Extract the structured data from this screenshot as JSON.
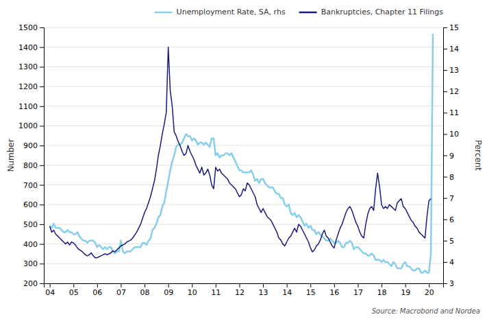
{
  "chart_data": {
    "type": "line",
    "y_label": "Number",
    "y2_label": "Percent",
    "annotations": [
      "Source: Macrobond and Nordea"
    ],
    "xlim": [
      2003.75,
      2020.6
    ],
    "xticks": [
      {
        "value": 2004,
        "label": "04"
      },
      {
        "value": 2005,
        "label": "05"
      },
      {
        "value": 2006,
        "label": "06"
      },
      {
        "value": 2007,
        "label": "07"
      },
      {
        "value": 2008,
        "label": "08"
      },
      {
        "value": 2009,
        "label": "09"
      },
      {
        "value": 2010,
        "label": "10"
      },
      {
        "value": 2011,
        "label": "11"
      },
      {
        "value": 2012,
        "label": "12"
      },
      {
        "value": 2013,
        "label": "13"
      },
      {
        "value": 2014,
        "label": "14"
      },
      {
        "value": 2015,
        "label": "15"
      },
      {
        "value": 2016,
        "label": "16"
      },
      {
        "value": 2017,
        "label": "17"
      },
      {
        "value": 2018,
        "label": "18"
      },
      {
        "value": 2019,
        "label": "19"
      },
      {
        "value": 2020,
        "label": "20"
      }
    ],
    "ylim": [
      200,
      1500
    ],
    "yticks": [
      200,
      300,
      400,
      500,
      600,
      700,
      800,
      900,
      1000,
      1100,
      1200,
      1300,
      1400,
      1500
    ],
    "y2lim": [
      3,
      15
    ],
    "y2ticks": [
      3,
      4,
      5,
      6,
      7,
      8,
      9,
      10,
      11,
      12,
      13,
      14,
      15
    ],
    "grid": true,
    "legend": "upper right",
    "series": [
      {
        "name": "Unemployment Rate, SA, rhs",
        "color": "#87CEEB",
        "axis": "y2",
        "x": [
          2004.0,
          2004.083,
          2004.167,
          2004.25,
          2004.333,
          2004.417,
          2004.5,
          2004.583,
          2004.667,
          2004.75,
          2004.833,
          2004.917,
          2005.0,
          2005.083,
          2005.167,
          2005.25,
          2005.333,
          2005.417,
          2005.5,
          2005.583,
          2005.667,
          2005.75,
          2005.833,
          2005.917,
          2006.0,
          2006.083,
          2006.167,
          2006.25,
          2006.333,
          2006.417,
          2006.5,
          2006.583,
          2006.667,
          2006.75,
          2006.833,
          2006.917,
          2007.0,
          2007.083,
          2007.167,
          2007.25,
          2007.333,
          2007.417,
          2007.5,
          2007.583,
          2007.667,
          2007.75,
          2007.833,
          2007.917,
          2008.0,
          2008.083,
          2008.167,
          2008.25,
          2008.333,
          2008.417,
          2008.5,
          2008.583,
          2008.667,
          2008.75,
          2008.833,
          2008.917,
          2009.0,
          2009.083,
          2009.167,
          2009.25,
          2009.333,
          2009.417,
          2009.5,
          2009.583,
          2009.667,
          2009.75,
          2009.833,
          2009.917,
          2010.0,
          2010.083,
          2010.167,
          2010.25,
          2010.333,
          2010.417,
          2010.5,
          2010.583,
          2010.667,
          2010.75,
          2010.833,
          2010.917,
          2011.0,
          2011.083,
          2011.167,
          2011.25,
          2011.333,
          2011.417,
          2011.5,
          2011.583,
          2011.667,
          2011.75,
          2011.833,
          2011.917,
          2012.0,
          2012.083,
          2012.167,
          2012.25,
          2012.333,
          2012.417,
          2012.5,
          2012.583,
          2012.667,
          2012.75,
          2012.833,
          2012.917,
          2013.0,
          2013.083,
          2013.167,
          2013.25,
          2013.333,
          2013.417,
          2013.5,
          2013.583,
          2013.667,
          2013.75,
          2013.833,
          2013.917,
          2014.0,
          2014.083,
          2014.167,
          2014.25,
          2014.333,
          2014.417,
          2014.5,
          2014.583,
          2014.667,
          2014.75,
          2014.833,
          2014.917,
          2015.0,
          2015.083,
          2015.167,
          2015.25,
          2015.333,
          2015.417,
          2015.5,
          2015.583,
          2015.667,
          2015.75,
          2015.833,
          2015.917,
          2016.0,
          2016.083,
          2016.167,
          2016.25,
          2016.333,
          2016.417,
          2016.5,
          2016.583,
          2016.667,
          2016.75,
          2016.833,
          2016.917,
          2017.0,
          2017.083,
          2017.167,
          2017.25,
          2017.333,
          2017.417,
          2017.5,
          2017.583,
          2017.667,
          2017.75,
          2017.833,
          2017.917,
          2018.0,
          2018.083,
          2018.167,
          2018.25,
          2018.333,
          2018.417,
          2018.5,
          2018.583,
          2018.667,
          2018.75,
          2018.833,
          2018.917,
          2019.0,
          2019.083,
          2019.167,
          2019.25,
          2019.333,
          2019.417,
          2019.5,
          2019.583,
          2019.667,
          2019.75,
          2019.833,
          2019.917,
          2020.0,
          2020.083,
          2020.167
        ],
        "values": [
          5.7,
          5.6,
          5.8,
          5.6,
          5.6,
          5.6,
          5.5,
          5.4,
          5.4,
          5.5,
          5.4,
          5.4,
          5.3,
          5.3,
          5.4,
          5.2,
          5.1,
          5.0,
          5.0,
          4.9,
          5.0,
          5.0,
          5.0,
          4.9,
          4.7,
          4.8,
          4.7,
          4.6,
          4.7,
          4.6,
          4.7,
          4.7,
          4.5,
          4.4,
          4.5,
          4.5,
          5.0,
          4.5,
          4.4,
          4.5,
          4.5,
          4.5,
          4.6,
          4.7,
          4.7,
          4.7,
          4.7,
          4.9,
          4.9,
          4.8,
          5.0,
          5.1,
          5.5,
          5.6,
          5.8,
          6.1,
          6.2,
          6.6,
          6.8,
          7.3,
          7.8,
          8.3,
          8.7,
          9.0,
          9.4,
          9.5,
          9.5,
          9.6,
          9.8,
          10.0,
          9.9,
          9.9,
          9.7,
          9.8,
          9.7,
          9.5,
          9.6,
          9.6,
          9.5,
          9.6,
          9.5,
          9.4,
          9.8,
          9.8,
          9.0,
          9.1,
          8.9,
          9.0,
          9.0,
          9.1,
          9.1,
          9.0,
          9.1,
          8.9,
          8.7,
          8.5,
          8.3,
          8.3,
          8.2,
          8.2,
          8.2,
          8.2,
          8.3,
          8.1,
          7.8,
          7.9,
          7.7,
          7.9,
          7.9,
          7.7,
          7.6,
          7.5,
          7.5,
          7.5,
          7.3,
          7.2,
          7.2,
          7.0,
          7.0,
          6.7,
          6.6,
          6.7,
          6.3,
          6.2,
          6.3,
          6.1,
          6.2,
          6.1,
          5.9,
          5.7,
          5.8,
          5.6,
          5.7,
          5.5,
          5.5,
          5.3,
          5.4,
          5.3,
          5.2,
          5.1,
          5.0,
          5.0,
          5.1,
          5.0,
          4.9,
          4.9,
          5.0,
          4.9,
          4.7,
          4.7,
          4.9,
          4.9,
          5.0,
          4.9,
          4.6,
          4.7,
          4.7,
          4.6,
          4.5,
          4.4,
          4.4,
          4.3,
          4.3,
          4.4,
          4.3,
          4.1,
          4.1,
          4.1,
          4.0,
          4.1,
          4.0,
          4.0,
          3.9,
          3.8,
          4.0,
          3.9,
          3.7,
          3.7,
          3.7,
          3.9,
          4.0,
          3.8,
          3.8,
          3.7,
          3.6,
          3.6,
          3.7,
          3.7,
          3.5,
          3.5,
          3.6,
          3.5,
          3.5,
          4.4,
          14.7
        ]
      },
      {
        "name": "Bankruptcies, Chapter 11 Filings",
        "color": "#1a1a7e",
        "x": [
          2004.0,
          2004.083,
          2004.167,
          2004.25,
          2004.333,
          2004.417,
          2004.5,
          2004.583,
          2004.667,
          2004.75,
          2004.833,
          2004.917,
          2005.0,
          2005.083,
          2005.167,
          2005.25,
          2005.333,
          2005.417,
          2005.5,
          2005.583,
          2005.667,
          2005.75,
          2005.833,
          2005.917,
          2006.0,
          2006.083,
          2006.167,
          2006.25,
          2006.333,
          2006.417,
          2006.5,
          2006.583,
          2006.667,
          2006.75,
          2006.833,
          2006.917,
          2007.0,
          2007.083,
          2007.167,
          2007.25,
          2007.333,
          2007.417,
          2007.5,
          2007.583,
          2007.667,
          2007.75,
          2007.833,
          2007.917,
          2008.0,
          2008.083,
          2008.167,
          2008.25,
          2008.333,
          2008.417,
          2008.5,
          2008.583,
          2008.667,
          2008.75,
          2008.833,
          2008.917,
          2009.0,
          2009.083,
          2009.167,
          2009.25,
          2009.333,
          2009.417,
          2009.5,
          2009.583,
          2009.667,
          2009.75,
          2009.833,
          2009.917,
          2010.0,
          2010.083,
          2010.167,
          2010.25,
          2010.333,
          2010.417,
          2010.5,
          2010.583,
          2010.667,
          2010.75,
          2010.833,
          2010.917,
          2011.0,
          2011.083,
          2011.167,
          2011.25,
          2011.333,
          2011.417,
          2011.5,
          2011.583,
          2011.667,
          2011.75,
          2011.833,
          2011.917,
          2012.0,
          2012.083,
          2012.167,
          2012.25,
          2012.333,
          2012.417,
          2012.5,
          2012.583,
          2012.667,
          2012.75,
          2012.833,
          2012.917,
          2013.0,
          2013.083,
          2013.167,
          2013.25,
          2013.333,
          2013.417,
          2013.5,
          2013.583,
          2013.667,
          2013.75,
          2013.833,
          2013.917,
          2014.0,
          2014.083,
          2014.167,
          2014.25,
          2014.333,
          2014.417,
          2014.5,
          2014.583,
          2014.667,
          2014.75,
          2014.833,
          2014.917,
          2015.0,
          2015.083,
          2015.167,
          2015.25,
          2015.333,
          2015.417,
          2015.5,
          2015.583,
          2015.667,
          2015.75,
          2015.833,
          2015.917,
          2016.0,
          2016.083,
          2016.167,
          2016.25,
          2016.333,
          2016.417,
          2016.5,
          2016.583,
          2016.667,
          2016.75,
          2016.833,
          2016.917,
          2017.0,
          2017.083,
          2017.167,
          2017.25,
          2017.333,
          2017.417,
          2017.5,
          2017.583,
          2017.667,
          2017.75,
          2017.833,
          2017.917,
          2018.0,
          2018.083,
          2018.167,
          2018.25,
          2018.333,
          2018.417,
          2018.5,
          2018.583,
          2018.667,
          2018.75,
          2018.833,
          2018.917,
          2019.0,
          2019.083,
          2019.167,
          2019.25,
          2019.333,
          2019.417,
          2019.5,
          2019.583,
          2019.667,
          2019.75,
          2019.833,
          2019.917,
          2020.0,
          2020.083
        ],
        "values": [
          490,
          460,
          470,
          450,
          440,
          430,
          420,
          410,
          400,
          410,
          395,
          410,
          405,
          395,
          380,
          370,
          365,
          355,
          345,
          340,
          345,
          355,
          340,
          330,
          330,
          335,
          340,
          345,
          350,
          345,
          350,
          355,
          365,
          360,
          370,
          380,
          390,
          395,
          400,
          410,
          415,
          420,
          430,
          445,
          460,
          480,
          500,
          530,
          560,
          580,
          610,
          640,
          680,
          720,
          780,
          850,
          900,
          960,
          1010,
          1070,
          1400,
          1180,
          1100,
          970,
          950,
          920,
          900,
          870,
          850,
          860,
          900,
          870,
          850,
          830,
          800,
          780,
          760,
          790,
          750,
          760,
          780,
          750,
          700,
          680,
          790,
          770,
          780,
          760,
          750,
          740,
          730,
          710,
          700,
          690,
          680,
          660,
          640,
          650,
          680,
          670,
          710,
          700,
          680,
          660,
          640,
          600,
          580,
          560,
          580,
          560,
          540,
          530,
          520,
          500,
          480,
          460,
          430,
          420,
          400,
          390,
          410,
          430,
          440,
          460,
          480,
          460,
          500,
          490,
          470,
          450,
          430,
          410,
          380,
          360,
          370,
          390,
          400,
          420,
          450,
          470,
          440,
          430,
          410,
          390,
          380,
          420,
          450,
          480,
          500,
          530,
          560,
          580,
          590,
          570,
          540,
          510,
          490,
          460,
          440,
          430,
          500,
          550,
          580,
          590,
          570,
          680,
          760,
          690,
          600,
          580,
          590,
          580,
          600,
          590,
          580,
          570,
          610,
          620,
          630,
          590,
          580,
          560,
          540,
          520,
          510,
          490,
          480,
          460,
          450,
          440,
          430,
          540,
          620,
          630
        ]
      }
    ]
  }
}
